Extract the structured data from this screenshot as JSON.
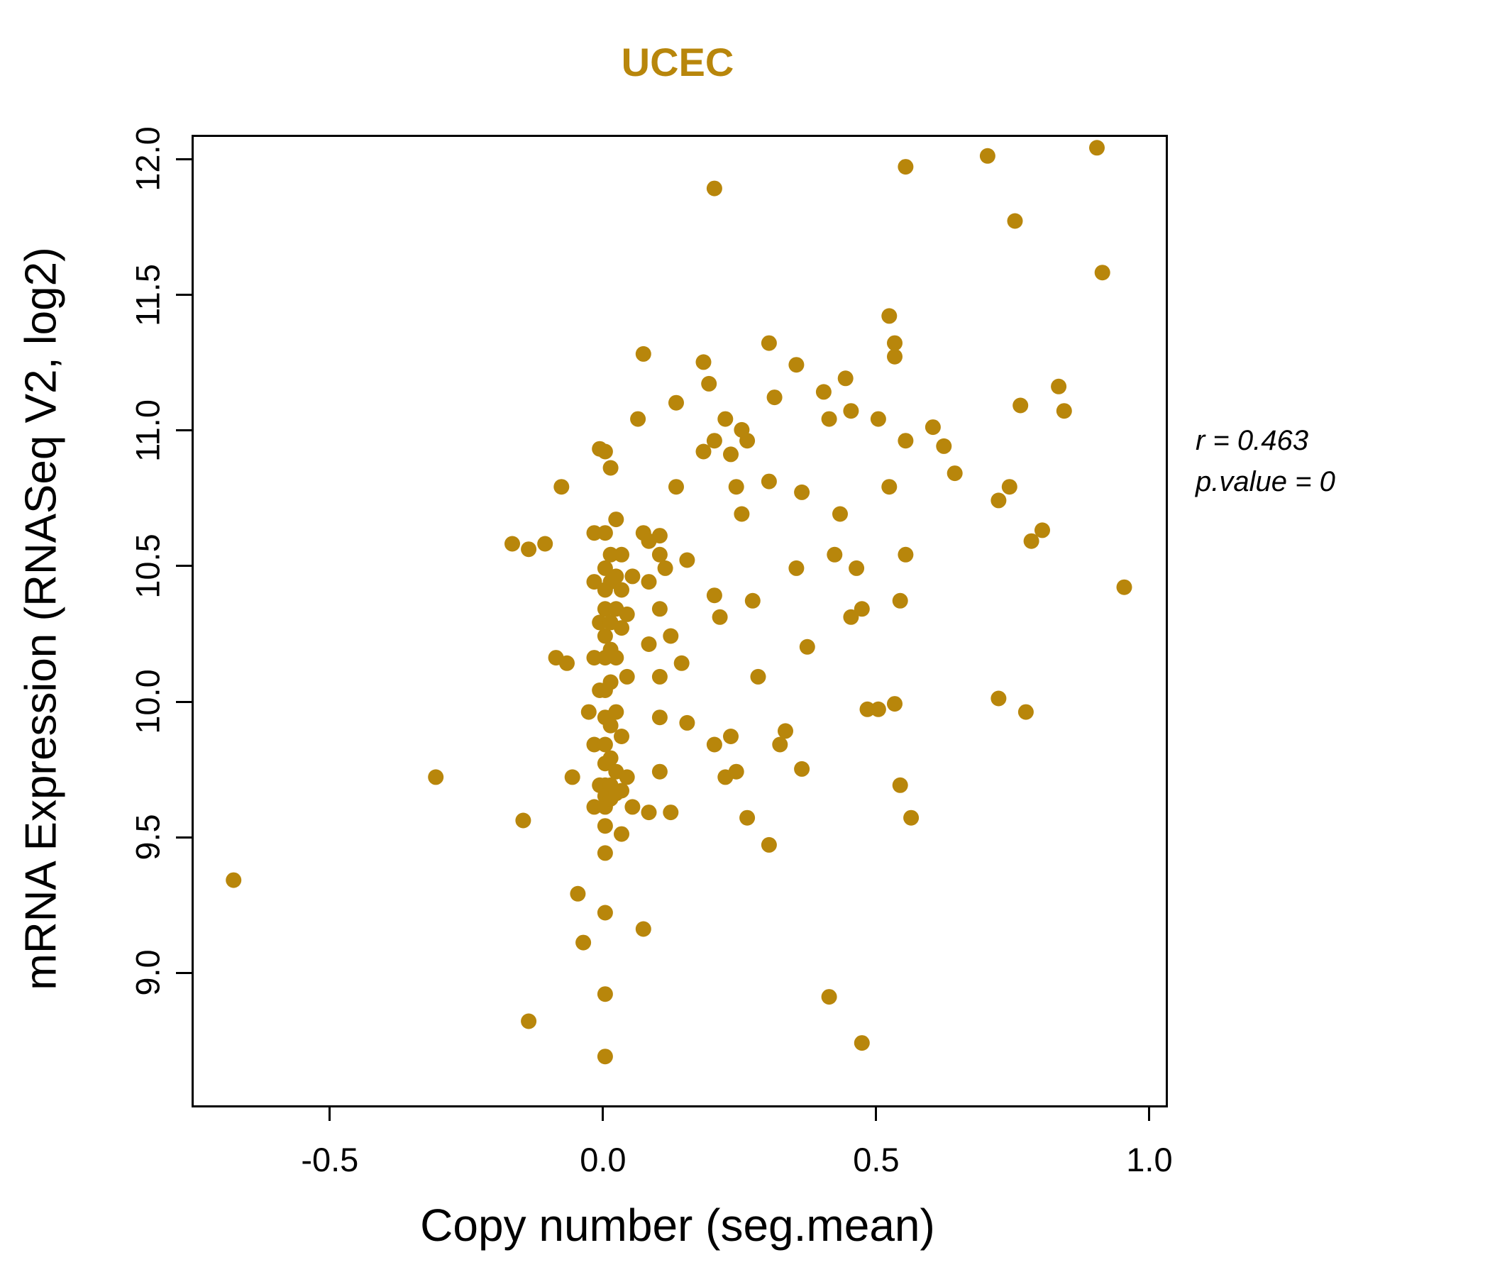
{
  "title": "UCEC",
  "annotation": {
    "line1": "r = 0.463",
    "line2": "p.value = 0"
  },
  "colors": {
    "accent": "#B8860B",
    "axis": "#000000"
  },
  "chart_data": {
    "type": "scatter",
    "title": "UCEC",
    "xlabel": "Copy number (seg.mean)",
    "ylabel": "mRNA Expression (RNASeq V2, log2)",
    "xlim": [
      -0.753,
      1.026
    ],
    "ylim": [
      8.52,
      12.09
    ],
    "x_ticks": [
      -0.5,
      0.0,
      0.5,
      1.0
    ],
    "y_ticks": [
      9.0,
      9.5,
      10.0,
      10.5,
      11.0,
      11.5,
      12.0
    ],
    "grid": false,
    "legend": "none",
    "point_color": "#B8860B",
    "annotation_r": 0.463,
    "annotation_p_value": 0,
    "points": [
      [
        -0.68,
        9.35
      ],
      [
        -0.31,
        9.73
      ],
      [
        -0.17,
        10.59
      ],
      [
        -0.14,
        10.57
      ],
      [
        -0.11,
        10.59
      ],
      [
        -0.15,
        9.57
      ],
      [
        -0.14,
        8.83
      ],
      [
        -0.08,
        10.8
      ],
      [
        -0.09,
        10.17
      ],
      [
        -0.07,
        10.15
      ],
      [
        -0.06,
        9.73
      ],
      [
        -0.05,
        9.3
      ],
      [
        -0.04,
        9.12
      ],
      [
        -0.03,
        9.97
      ],
      [
        -0.02,
        10.63
      ],
      [
        -0.01,
        10.94
      ],
      [
        -0.02,
        10.45
      ],
      [
        -0.01,
        10.3
      ],
      [
        -0.02,
        10.17
      ],
      [
        -0.01,
        10.05
      ],
      [
        -0.02,
        9.85
      ],
      [
        -0.01,
        9.7
      ],
      [
        -0.02,
        9.62
      ],
      [
        0.0,
        10.93
      ],
      [
        0.0,
        10.63
      ],
      [
        0.0,
        10.5
      ],
      [
        0.0,
        10.42
      ],
      [
        0.0,
        10.35
      ],
      [
        0.0,
        10.25
      ],
      [
        0.0,
        10.17
      ],
      [
        0.0,
        10.05
      ],
      [
        0.0,
        9.95
      ],
      [
        0.0,
        9.85
      ],
      [
        0.0,
        9.78
      ],
      [
        0.0,
        9.7
      ],
      [
        0.0,
        9.66
      ],
      [
        0.0,
        9.62
      ],
      [
        0.0,
        9.55
      ],
      [
        0.0,
        9.45
      ],
      [
        0.0,
        9.23
      ],
      [
        0.0,
        8.93
      ],
      [
        0.0,
        8.7
      ],
      [
        0.01,
        10.87
      ],
      [
        0.01,
        10.55
      ],
      [
        0.01,
        10.45
      ],
      [
        0.01,
        10.3
      ],
      [
        0.01,
        10.2
      ],
      [
        0.01,
        10.08
      ],
      [
        0.01,
        9.92
      ],
      [
        0.01,
        9.8
      ],
      [
        0.01,
        9.7
      ],
      [
        0.01,
        9.65
      ],
      [
        0.02,
        10.68
      ],
      [
        0.02,
        10.47
      ],
      [
        0.02,
        10.35
      ],
      [
        0.02,
        10.17
      ],
      [
        0.02,
        9.97
      ],
      [
        0.02,
        9.75
      ],
      [
        0.02,
        9.67
      ],
      [
        0.03,
        10.55
      ],
      [
        0.03,
        10.42
      ],
      [
        0.03,
        10.28
      ],
      [
        0.03,
        9.88
      ],
      [
        0.03,
        9.68
      ],
      [
        0.03,
        9.52
      ],
      [
        0.04,
        10.33
      ],
      [
        0.04,
        10.1
      ],
      [
        0.04,
        9.73
      ],
      [
        0.05,
        9.62
      ],
      [
        0.05,
        10.47
      ],
      [
        0.06,
        11.05
      ],
      [
        0.07,
        11.29
      ],
      [
        0.07,
        10.63
      ],
      [
        0.07,
        9.17
      ],
      [
        0.08,
        10.6
      ],
      [
        0.08,
        10.45
      ],
      [
        0.08,
        10.22
      ],
      [
        0.08,
        9.6
      ],
      [
        0.1,
        10.62
      ],
      [
        0.1,
        10.55
      ],
      [
        0.1,
        10.35
      ],
      [
        0.1,
        10.1
      ],
      [
        0.1,
        9.95
      ],
      [
        0.1,
        9.75
      ],
      [
        0.11,
        10.5
      ],
      [
        0.12,
        10.25
      ],
      [
        0.12,
        9.6
      ],
      [
        0.13,
        11.11
      ],
      [
        0.13,
        10.8
      ],
      [
        0.14,
        10.15
      ],
      [
        0.15,
        10.53
      ],
      [
        0.15,
        9.93
      ],
      [
        0.18,
        11.26
      ],
      [
        0.18,
        10.93
      ],
      [
        0.19,
        11.18
      ],
      [
        0.2,
        11.9
      ],
      [
        0.2,
        10.97
      ],
      [
        0.2,
        10.4
      ],
      [
        0.2,
        9.85
      ],
      [
        0.21,
        10.32
      ],
      [
        0.22,
        11.05
      ],
      [
        0.22,
        9.73
      ],
      [
        0.23,
        10.92
      ],
      [
        0.23,
        9.88
      ],
      [
        0.24,
        10.8
      ],
      [
        0.24,
        9.75
      ],
      [
        0.25,
        11.01
      ],
      [
        0.25,
        10.7
      ],
      [
        0.26,
        10.97
      ],
      [
        0.26,
        9.58
      ],
      [
        0.27,
        10.38
      ],
      [
        0.28,
        10.1
      ],
      [
        0.3,
        11.33
      ],
      [
        0.3,
        10.82
      ],
      [
        0.3,
        9.48
      ],
      [
        0.31,
        11.13
      ],
      [
        0.32,
        9.85
      ],
      [
        0.33,
        9.9
      ],
      [
        0.35,
        11.25
      ],
      [
        0.35,
        10.5
      ],
      [
        0.36,
        10.78
      ],
      [
        0.36,
        9.76
      ],
      [
        0.37,
        10.21
      ],
      [
        0.4,
        11.15
      ],
      [
        0.41,
        11.05
      ],
      [
        0.41,
        8.92
      ],
      [
        0.42,
        10.55
      ],
      [
        0.43,
        10.7
      ],
      [
        0.44,
        11.2
      ],
      [
        0.45,
        11.08
      ],
      [
        0.45,
        10.32
      ],
      [
        0.46,
        10.5
      ],
      [
        0.47,
        10.35
      ],
      [
        0.47,
        8.75
      ],
      [
        0.48,
        9.98
      ],
      [
        0.5,
        11.05
      ],
      [
        0.5,
        9.98
      ],
      [
        0.52,
        11.43
      ],
      [
        0.52,
        10.8
      ],
      [
        0.53,
        11.33
      ],
      [
        0.53,
        11.28
      ],
      [
        0.53,
        10.0
      ],
      [
        0.54,
        10.38
      ],
      [
        0.54,
        9.7
      ],
      [
        0.55,
        11.98
      ],
      [
        0.55,
        10.97
      ],
      [
        0.55,
        10.55
      ],
      [
        0.56,
        9.58
      ],
      [
        0.6,
        11.02
      ],
      [
        0.62,
        10.95
      ],
      [
        0.64,
        10.85
      ],
      [
        0.7,
        12.02
      ],
      [
        0.72,
        10.75
      ],
      [
        0.72,
        10.02
      ],
      [
        0.74,
        10.8
      ],
      [
        0.75,
        11.78
      ],
      [
        0.76,
        11.1
      ],
      [
        0.77,
        9.97
      ],
      [
        0.78,
        10.6
      ],
      [
        0.8,
        10.64
      ],
      [
        0.83,
        11.17
      ],
      [
        0.84,
        11.08
      ],
      [
        0.9,
        12.05
      ],
      [
        0.91,
        11.59
      ],
      [
        0.95,
        10.43
      ]
    ]
  }
}
